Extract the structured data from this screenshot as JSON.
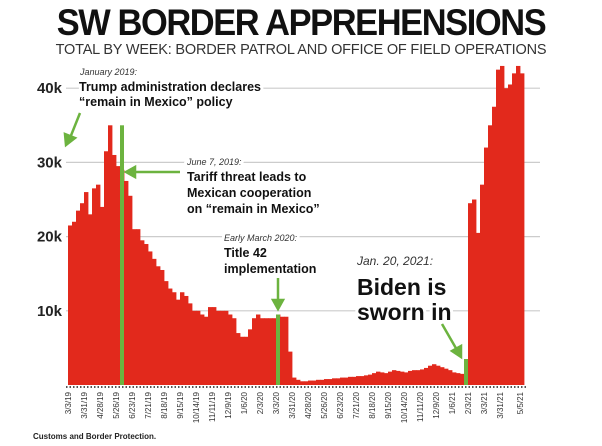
{
  "header": {
    "title": "SW BORDER APPREHENSIONS",
    "subtitle": "TOTAL BY WEEK: BORDER PATROL AND OFFICE OF FIELD OPERATIONS"
  },
  "footer": {
    "source": "Customs and Border Protection."
  },
  "colors": {
    "bars": "#e2291c",
    "markers": "#6cb33f",
    "grid": "#cccccc"
  },
  "chart_data": {
    "type": "bar",
    "title": "SW BORDER APPREHENSIONS",
    "subtitle": "TOTAL BY WEEK: BORDER PATROL AND OFFICE OF FIELD OPERATIONS",
    "x_first_week": "3/3/19",
    "x_interval": "week",
    "values": [
      21.5,
      22,
      23.5,
      24.5,
      26,
      23,
      26.5,
      27,
      24,
      31.5,
      35,
      31,
      29.5,
      29,
      27.5,
      25.5,
      21,
      21,
      19.5,
      19,
      18,
      17,
      16,
      15.5,
      14,
      13,
      12.5,
      11.5,
      12.5,
      12,
      11,
      10,
      10,
      9.5,
      9.2,
      10.5,
      10.5,
      10,
      10,
      10,
      9.5,
      9,
      7,
      6.5,
      6.5,
      7.5,
      9,
      9.5,
      9,
      9,
      9,
      9,
      9.5,
      9.2,
      9.2,
      4.5,
      1,
      0.7,
      0.5,
      0.5,
      0.6,
      0.6,
      0.7,
      0.7,
      0.8,
      0.8,
      0.9,
      0.9,
      1.0,
      1.0,
      1.1,
      1.1,
      1.2,
      1.2,
      1.3,
      1.4,
      1.6,
      1.8,
      1.7,
      1.6,
      1.8,
      2.0,
      1.9,
      1.8,
      1.7,
      1.9,
      2.0,
      2.0,
      2.1,
      2.3,
      2.6,
      2.8,
      2.6,
      2.4,
      2.2,
      2.0,
      1.7,
      1.6,
      1.5,
      3.5,
      24.5,
      25,
      20.5,
      27,
      32,
      35,
      37.5,
      42.5,
      43,
      40,
      40.5,
      42,
      43,
      42
    ],
    "value_unit": "thousands",
    "x_tick_labels": [
      "3/3/19",
      "3/31/19",
      "4/28/19",
      "5/26/19",
      "6/23/19",
      "7/21/19",
      "8/18/19",
      "9/15/19",
      "10/14/19",
      "11/11/19",
      "12/9/19",
      "1/6/20",
      "2/3/20",
      "3/3/20",
      "3/31/20",
      "4/28/20",
      "5/26/20",
      "6/23/20",
      "7/21/20",
      "8/18/20",
      "9/15/20",
      "10/14/20",
      "11/11/20",
      "12/9/20",
      "1/6/21",
      "2/3/21",
      "3/3/21",
      "3/31/21",
      "5/5/21"
    ],
    "y_ticks": [
      10,
      20,
      30,
      40
    ],
    "y_tick_labels": [
      "10k",
      "20k",
      "30k",
      "40k"
    ],
    "ylim": [
      0,
      43
    ],
    "grid": true,
    "markers": [
      {
        "week": "6/2/19",
        "value": 35
      },
      {
        "week": "3/1/20",
        "value": 9.5
      },
      {
        "week": "1/24/21",
        "value": 3.5
      }
    ],
    "annotations": [
      {
        "date": "January 2019:",
        "lines": [
          "Trump administration declares",
          "“remain in Mexico” policy"
        ]
      },
      {
        "date": "June 7, 2019:",
        "lines": [
          "Tariff threat leads to",
          "Mexican cooperation",
          "on “remain in Mexico”"
        ]
      },
      {
        "date": "Early March 2020:",
        "lines": [
          "Title 42",
          "implementation"
        ]
      },
      {
        "date": "Jan. 20, 2021:",
        "lines": [
          "Biden is",
          "sworn in"
        ]
      }
    ]
  }
}
